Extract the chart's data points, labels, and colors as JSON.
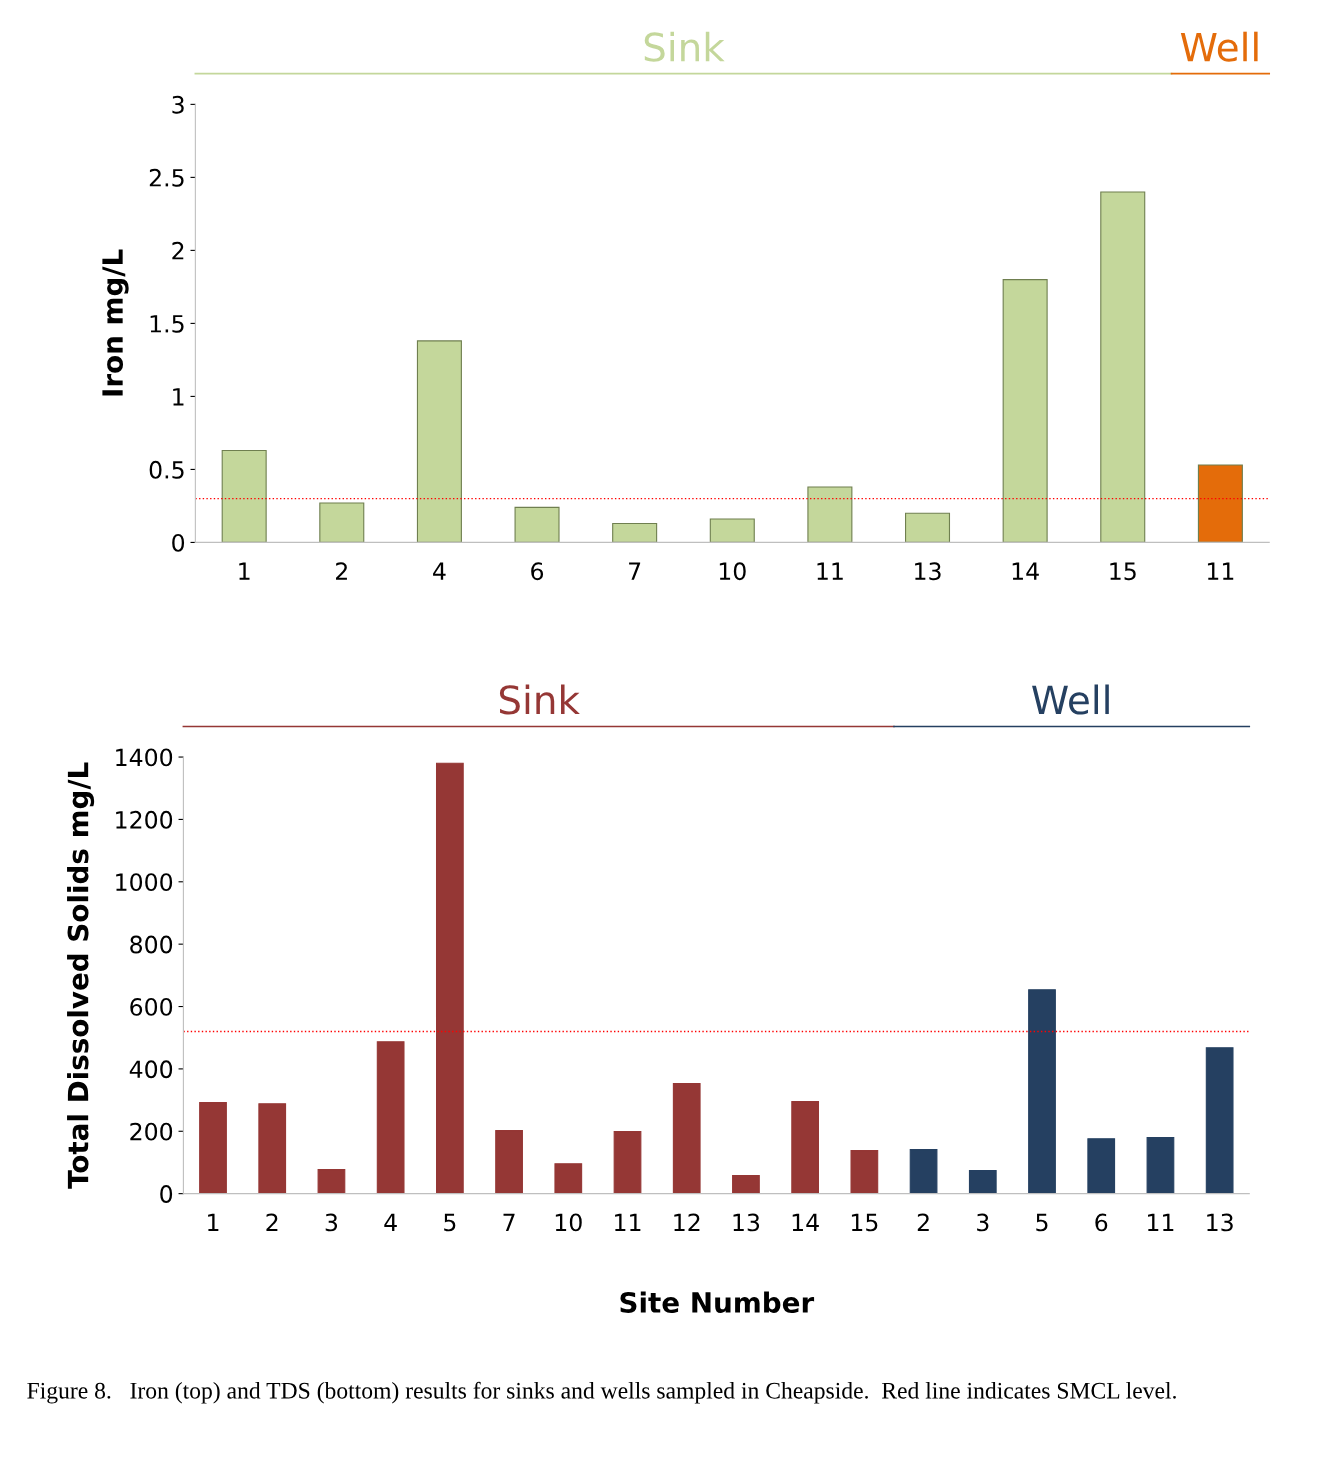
{
  "chart_data": [
    {
      "type": "bar",
      "ylabel": "Iron mg/L",
      "categories": [
        "1",
        "2",
        "4",
        "6",
        "7",
        "10",
        "11",
        "13",
        "14",
        "15",
        "11"
      ],
      "series": [
        {
          "name": "Sink",
          "color": "#c4d79b",
          "values": [
            0.63,
            0.27,
            1.38,
            0.24,
            0.13,
            0.16,
            0.38,
            0.2,
            1.8,
            2.4,
            null
          ]
        },
        {
          "name": "Well",
          "color": "#e46c0a",
          "values": [
            null,
            null,
            null,
            null,
            null,
            null,
            null,
            null,
            null,
            null,
            0.53
          ]
        }
      ],
      "ylim": [
        0,
        3
      ],
      "yticks": [
        0,
        0.5,
        1,
        1.5,
        2,
        2.5,
        3
      ],
      "grid": false,
      "legend": false,
      "ref_lines": [
        {
          "axis": "y",
          "value": 0.3,
          "color": "#ff0000",
          "line_style": "dotted"
        }
      ]
    },
    {
      "type": "bar",
      "ylabel": "Total Dissolved Solids mg/L",
      "xlabel": "Site Number",
      "categories": [
        "1",
        "2",
        "3",
        "4",
        "5",
        "7",
        "10",
        "11",
        "12",
        "13",
        "14",
        "15",
        "2",
        "3",
        "5",
        "6",
        "11",
        "13"
      ],
      "series": [
        {
          "name": "Sink",
          "color": "#953735",
          "values": [
            292,
            288,
            77,
            487,
            1380,
            202,
            96,
            199,
            353,
            58,
            295,
            138,
            null,
            null,
            null,
            null,
            null,
            null
          ]
        },
        {
          "name": "Well",
          "color": "#254061",
          "values": [
            null,
            null,
            null,
            null,
            null,
            null,
            null,
            null,
            null,
            null,
            null,
            null,
            141,
            74,
            654,
            176,
            180,
            468
          ]
        }
      ],
      "ylim": [
        0,
        1400
      ],
      "yticks": [
        0,
        200,
        400,
        600,
        800,
        1000,
        1200,
        1400
      ],
      "grid": false,
      "legend": false,
      "ref_lines": [
        {
          "axis": "y",
          "value": 520,
          "color": "#ff0000",
          "line_style": "dotted"
        }
      ],
      "annotations": [
        "Figure 8.   Iron (top) and TDS (bottom) results for sinks and wells sampled in Cheapside.  Red line indicates SMCL level."
      ]
    }
  ]
}
